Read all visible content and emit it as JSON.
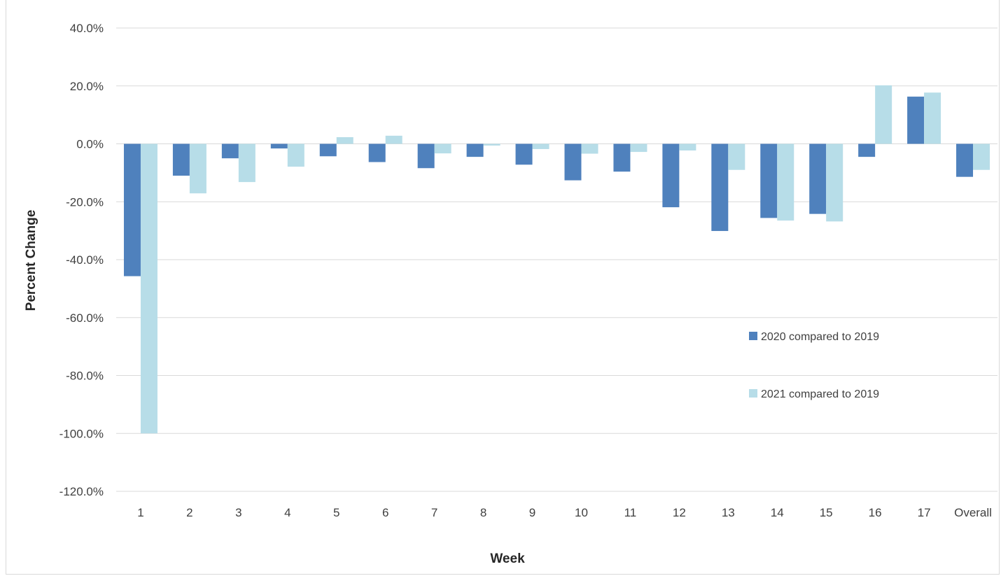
{
  "chart_data": {
    "type": "bar",
    "title": "",
    "xlabel": "Week",
    "ylabel": "Percent Change",
    "ylim": [
      -120,
      40
    ],
    "ytick_step": 20,
    "ytick_labels": [
      "40.0%",
      "20.0%",
      "0.0%",
      "-20.0%",
      "-40.0%",
      "-60.0%",
      "-80.0%",
      "-100.0%",
      "-120.0%"
    ],
    "grid": true,
    "legend_position": "right-center",
    "categories": [
      "1",
      "2",
      "3",
      "4",
      "5",
      "6",
      "7",
      "8",
      "9",
      "10",
      "11",
      "12",
      "13",
      "14",
      "15",
      "16",
      "17",
      "Overall"
    ],
    "series": [
      {
        "name": "2020 compared to 2019",
        "color": "#4f81bd",
        "values": [
          -45.7,
          -11.0,
          -5.0,
          -1.6,
          -4.3,
          -6.3,
          -8.4,
          -4.5,
          -7.2,
          -12.6,
          -9.6,
          -21.9,
          -30.1,
          -25.6,
          -24.2,
          -4.5,
          16.3,
          -11.4
        ]
      },
      {
        "name": "2021 compared to 2019",
        "color": "#b7dde8",
        "values": [
          -100.0,
          -17.1,
          -13.2,
          -7.9,
          2.3,
          2.8,
          -3.3,
          -0.6,
          -1.8,
          -3.4,
          -2.8,
          -2.3,
          -9.0,
          -26.5,
          -26.8,
          20.2,
          17.7,
          -9.0
        ]
      }
    ]
  }
}
